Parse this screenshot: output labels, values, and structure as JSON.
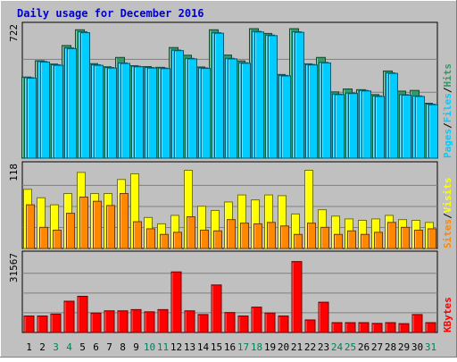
{
  "colors": {
    "background": "#c0c0c0",
    "title": "#0000cc",
    "hits": "#339966",
    "files": "#00ccff",
    "pages": "#00ccff",
    "visits": "#ffff00",
    "sites": "#ff8800",
    "kbytes": "#ff0000",
    "grid": "#808080",
    "weekend_label": "#00805c",
    "weekday_label": "#000000",
    "slash": "#000000"
  },
  "chart_data": [
    {
      "type": "bar",
      "title": "Daily usage for December 2016",
      "ymax_label": "722",
      "ylim": [
        0,
        722
      ],
      "legend": [
        {
          "text": "Pages",
          "color_key": "pages"
        },
        {
          "text": "/",
          "color_key": "slash"
        },
        {
          "text": "Files",
          "color_key": "files"
        },
        {
          "text": "/",
          "color_key": "slash"
        },
        {
          "text": "Hits",
          "color_key": "hits"
        }
      ],
      "legend_position": "right",
      "grid": true,
      "categories": [
        "1",
        "2",
        "3",
        "4",
        "5",
        "6",
        "7",
        "8",
        "9",
        "10",
        "11",
        "12",
        "13",
        "14",
        "15",
        "16",
        "17",
        "18",
        "19",
        "20",
        "21",
        "22",
        "23",
        "24",
        "25",
        "26",
        "27",
        "28",
        "29",
        "30",
        "31"
      ],
      "weekend_days": [
        "3",
        "4",
        "10",
        "11",
        "17",
        "18",
        "24",
        "25",
        "31"
      ],
      "series": [
        {
          "name": "Hits",
          "color_key": "hits",
          "values": [
            443,
            532,
            514,
            615,
            701,
            516,
            499,
            550,
            505,
            500,
            496,
            604,
            562,
            498,
            701,
            563,
            531,
            707,
            681,
            457,
            707,
            515,
            550,
            362,
            378,
            374,
            347,
            476,
            366,
            370,
            300
          ]
        },
        {
          "name": "Files",
          "color_key": "files",
          "values": [
            440,
            528,
            510,
            602,
            690,
            510,
            495,
            520,
            502,
            495,
            492,
            590,
            545,
            493,
            685,
            545,
            521,
            692,
            672,
            452,
            690,
            512,
            523,
            350,
            356,
            370,
            340,
            466,
            347,
            340,
            295
          ]
        },
        {
          "name": "Pages",
          "color_key": "pages",
          "values": [
            437,
            525,
            507,
            598,
            685,
            507,
            492,
            517,
            499,
            492,
            489,
            587,
            542,
            490,
            682,
            542,
            518,
            689,
            669,
            449,
            687,
            509,
            520,
            347,
            353,
            367,
            337,
            463,
            344,
            337,
            292
          ]
        }
      ]
    },
    {
      "type": "bar",
      "ymax_label": "118",
      "ylim": [
        0,
        118
      ],
      "legend": [
        {
          "text": "Sites",
          "color_key": "sites"
        },
        {
          "text": "/",
          "color_key": "slash"
        },
        {
          "text": "Visits",
          "color_key": "visits"
        }
      ],
      "legend_position": "right",
      "grid": true,
      "categories": [
        "1",
        "2",
        "3",
        "4",
        "5",
        "6",
        "7",
        "8",
        "9",
        "10",
        "11",
        "12",
        "13",
        "14",
        "15",
        "16",
        "17",
        "18",
        "19",
        "20",
        "21",
        "22",
        "23",
        "24",
        "25",
        "26",
        "27",
        "28",
        "29",
        "30",
        "31"
      ],
      "series": [
        {
          "name": "Visits",
          "color_key": "visits",
          "values": [
            84,
            72,
            62,
            78,
            108,
            78,
            78,
            98,
            106,
            44,
            35,
            47,
            111,
            60,
            54,
            66,
            76,
            69,
            76,
            75,
            49,
            111,
            55,
            46,
            42,
            40,
            42,
            47,
            41,
            40,
            37
          ]
        },
        {
          "name": "Sites",
          "color_key": "sites",
          "values": [
            62,
            30,
            26,
            50,
            73,
            67,
            61,
            78,
            38,
            28,
            20,
            23,
            45,
            26,
            25,
            41,
            36,
            35,
            37,
            32,
            20,
            36,
            30,
            20,
            25,
            20,
            23,
            37,
            30,
            26,
            28
          ]
        }
      ]
    },
    {
      "type": "bar",
      "ymax_label": "31567",
      "ylim": [
        0,
        31567
      ],
      "legend": [
        {
          "text": "KBytes",
          "color_key": "kbytes"
        }
      ],
      "legend_position": "right",
      "grid": true,
      "categories": [
        "1",
        "2",
        "3",
        "4",
        "5",
        "6",
        "7",
        "8",
        "9",
        "10",
        "11",
        "12",
        "13",
        "14",
        "15",
        "16",
        "17",
        "18",
        "19",
        "20",
        "21",
        "22",
        "23",
        "24",
        "25",
        "26",
        "27",
        "28",
        "29",
        "30",
        "31"
      ],
      "series": [
        {
          "name": "KBytes",
          "color_key": "kbytes",
          "values": [
            6700,
            6700,
            7500,
            12700,
            14700,
            7900,
            8800,
            8800,
            9300,
            8400,
            9300,
            24600,
            8800,
            7300,
            19300,
            8100,
            6700,
            10300,
            7900,
            6700,
            28800,
            5100,
            12300,
            4000,
            4000,
            4000,
            3700,
            4000,
            3600,
            7300,
            4000
          ]
        }
      ]
    }
  ]
}
